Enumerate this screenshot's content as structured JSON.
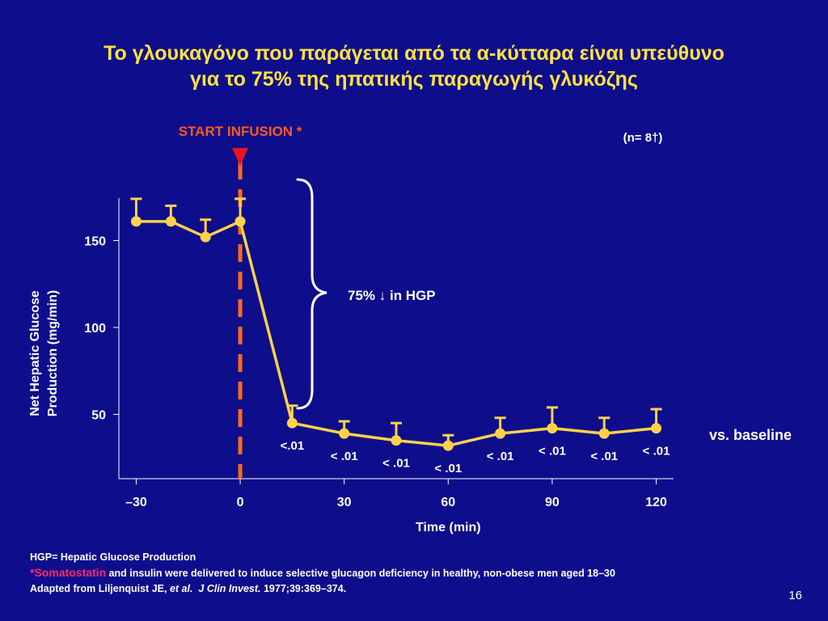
{
  "title": {
    "line1": "Το γλουκαγόνο που παράγεται από τα α-κύτταρα είναι υπεύθυνο",
    "line2": "για το 75% της ηπατικής παραγωγής γλυκόζης"
  },
  "colors": {
    "background": "#0e0e8c",
    "title": "#ffe23f",
    "series": "#ffd24a",
    "infusion_line": "#ff6a1a",
    "infusion_label": "#ff5a1a",
    "infusion_arrow": "#e8141e",
    "axis": "#ffffff",
    "footnote_highlight": "#ff2a6a"
  },
  "chart_data": {
    "type": "line",
    "x": [
      -30,
      -20,
      -10,
      0,
      15,
      30,
      45,
      60,
      75,
      90,
      105,
      120
    ],
    "series": [
      {
        "values": [
          161,
          161,
          152,
          161,
          45,
          39,
          35,
          32,
          39,
          42,
          39,
          42
        ],
        "error_upper": [
          174,
          170,
          162,
          174,
          55,
          46,
          45,
          38,
          48,
          54,
          48,
          53
        ]
      }
    ],
    "p_values": [
      "",
      "",
      "",
      "",
      "<.01",
      "< .01",
      "< .01",
      "< .01",
      "< .01",
      "< .01",
      "< .01",
      "< .01"
    ],
    "p_values_note": "vs. baseline",
    "xlabel": "Time (min)",
    "ylabel_line1": "Net Hepatic Glucose",
    "ylabel_line2": "Production (mg/min)",
    "xticks": [
      -30,
      0,
      30,
      60,
      90,
      120
    ],
    "xtick_labels": [
      "–30",
      "0",
      "30",
      "60",
      "90",
      "120"
    ],
    "yticks": [
      50,
      100,
      150
    ],
    "yticks_labels": [
      "50",
      "100",
      "150"
    ],
    "xlim": [
      -35,
      125
    ],
    "ylim": [
      13,
      200
    ],
    "infusion_x": 0,
    "infusion_label": "START INFUSION *",
    "n_label": "(n= 8†)",
    "brace_label": "75% ↓ in HGP",
    "grid": false
  },
  "footnotes": {
    "line1": "HGP= Hepatic Glucose Production",
    "line2_highlight": "*Somatostatin",
    "line2_rest": " and insulin were delivered to induce selective glucagon deficiency in healthy, non-obese men aged 18–30",
    "line3_prefix": "Adapted from Liljenquist JE, ",
    "line3_etal": "et al.",
    "line3_journal": "J Clin Invest.",
    "line3_suffix": " 1977;39:369–374."
  },
  "page_number": "16"
}
